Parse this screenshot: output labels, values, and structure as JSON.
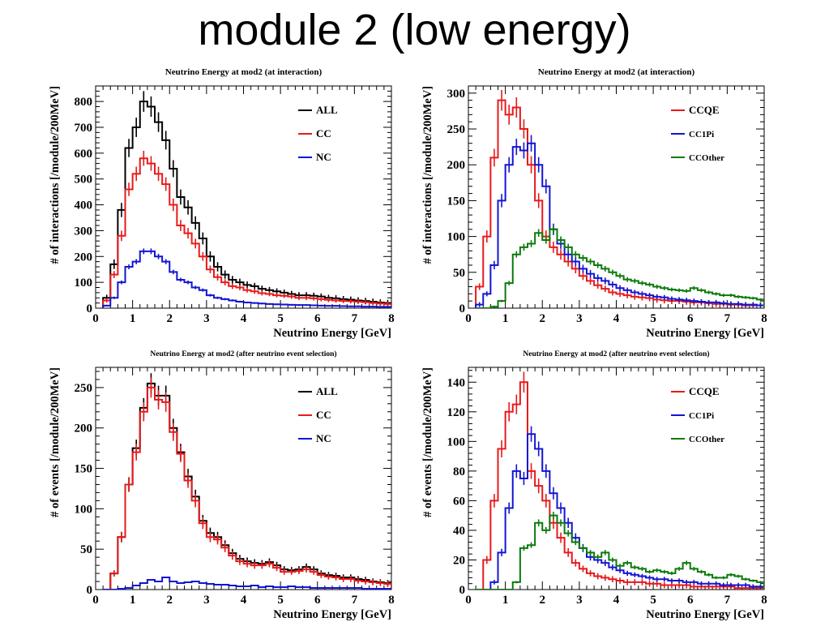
{
  "slide": {
    "title": "module 2 (low energy)"
  },
  "colors": {
    "ALL": "#000000",
    "CC": "#e8191a",
    "NC": "#1414d2",
    "CCQE": "#e8191a",
    "CC1Pi": "#1414d2",
    "CCOther": "#0a7a0a"
  },
  "chart_data": [
    {
      "type": "histogram",
      "title": "Neutrino Energy at mod2 (at interaction)",
      "xlabel": "Neutrino Energy [GeV]",
      "ylabel": "# of interactions [/module/200MeV]",
      "xlim": [
        0,
        8
      ],
      "ylim": [
        0,
        860
      ],
      "xticks": [
        0,
        1,
        2,
        3,
        4,
        5,
        6,
        7,
        8
      ],
      "yticks": [
        0,
        100,
        200,
        300,
        400,
        500,
        600,
        700,
        800
      ],
      "bin_width": 0.2,
      "x_start": 0.2,
      "legend_position": "top-right",
      "series": [
        {
          "name": "ALL",
          "color": "#000000",
          "values": [
            40,
            170,
            380,
            620,
            700,
            800,
            780,
            720,
            650,
            540,
            430,
            390,
            330,
            270,
            200,
            160,
            130,
            110,
            100,
            90,
            85,
            75,
            70,
            65,
            60,
            55,
            50,
            50,
            48,
            45,
            40,
            38,
            35,
            33,
            30,
            28,
            25,
            22,
            20
          ]
        },
        {
          "name": "CC",
          "color": "#e8191a",
          "values": [
            30,
            130,
            280,
            460,
            520,
            580,
            560,
            520,
            480,
            400,
            320,
            290,
            250,
            200,
            150,
            120,
            100,
            85,
            80,
            70,
            65,
            58,
            55,
            50,
            48,
            45,
            40,
            40,
            38,
            35,
            32,
            30,
            28,
            27,
            25,
            23,
            20,
            18,
            16
          ]
        },
        {
          "name": "NC",
          "color": "#1414d2",
          "values": [
            10,
            40,
            100,
            160,
            180,
            220,
            220,
            200,
            180,
            140,
            110,
            100,
            80,
            70,
            50,
            40,
            35,
            30,
            25,
            22,
            20,
            18,
            16,
            15,
            14,
            13,
            12,
            12,
            11,
            10,
            9,
            9,
            8,
            7,
            7,
            6,
            6,
            5,
            5
          ]
        }
      ]
    },
    {
      "type": "histogram",
      "title": "Neutrino Energy at mod2 (at interaction)",
      "xlabel": "Neutrino Energy [GeV]",
      "ylabel": "# of interactions [/module/200MeV]",
      "xlim": [
        0,
        8
      ],
      "ylim": [
        0,
        310
      ],
      "xticks": [
        0,
        1,
        2,
        3,
        4,
        5,
        6,
        7,
        8
      ],
      "yticks": [
        0,
        50,
        100,
        150,
        200,
        250,
        300
      ],
      "bin_width": 0.2,
      "x_start": 0.2,
      "legend_position": "top-right",
      "series": [
        {
          "name": "CCQE",
          "color": "#e8191a",
          "values": [
            30,
            100,
            210,
            290,
            270,
            280,
            250,
            200,
            150,
            100,
            85,
            75,
            65,
            55,
            45,
            38,
            32,
            27,
            22,
            20,
            18,
            16,
            15,
            14,
            12,
            11,
            10,
            10,
            9,
            8,
            8,
            7,
            6,
            6,
            5,
            5,
            4,
            4,
            4
          ]
        },
        {
          "name": "CC1Pi",
          "color": "#1414d2",
          "values": [
            5,
            20,
            60,
            150,
            200,
            225,
            220,
            230,
            200,
            170,
            110,
            90,
            75,
            65,
            55,
            48,
            42,
            38,
            33,
            28,
            25,
            22,
            20,
            18,
            16,
            15,
            13,
            12,
            11,
            10,
            9,
            8,
            8,
            7,
            6,
            6,
            5,
            5,
            4
          ]
        },
        {
          "name": "CCOther",
          "color": "#0a7a0a",
          "values": [
            0,
            0,
            2,
            10,
            35,
            75,
            85,
            90,
            105,
            95,
            110,
            95,
            85,
            75,
            70,
            65,
            60,
            55,
            50,
            45,
            40,
            38,
            35,
            33,
            30,
            28,
            26,
            25,
            24,
            28,
            25,
            22,
            20,
            18,
            18,
            16,
            15,
            14,
            12
          ]
        }
      ]
    },
    {
      "type": "histogram",
      "title": "Neutrino Energy at mod2 (after neutrino event selection)",
      "xlabel": "Neutrino Energy [GeV]",
      "ylabel": "# of events [/module/200MeV]",
      "xlim": [
        0,
        8
      ],
      "ylim": [
        0,
        275
      ],
      "xticks": [
        0,
        1,
        2,
        3,
        4,
        5,
        6,
        7,
        8
      ],
      "yticks": [
        0,
        50,
        100,
        150,
        200,
        250
      ],
      "bin_width": 0.2,
      "x_start": 0.2,
      "legend_position": "top-right",
      "series": [
        {
          "name": "ALL",
          "color": "#000000",
          "values": [
            0,
            20,
            65,
            130,
            175,
            225,
            255,
            240,
            240,
            200,
            170,
            140,
            115,
            85,
            70,
            65,
            55,
            45,
            38,
            35,
            33,
            32,
            34,
            30,
            25,
            24,
            25,
            28,
            25,
            20,
            18,
            17,
            15,
            15,
            13,
            12,
            10,
            9,
            8
          ]
        },
        {
          "name": "CC",
          "color": "#e8191a",
          "values": [
            0,
            20,
            65,
            130,
            170,
            220,
            250,
            235,
            232,
            195,
            168,
            135,
            110,
            82,
            65,
            62,
            52,
            42,
            35,
            32,
            30,
            30,
            32,
            27,
            22,
            22,
            23,
            25,
            22,
            18,
            16,
            15,
            13,
            13,
            11,
            10,
            9,
            8,
            7
          ]
        },
        {
          "name": "NC",
          "color": "#1414d2",
          "values": [
            0,
            0,
            1,
            2,
            5,
            8,
            12,
            10,
            15,
            10,
            8,
            9,
            10,
            8,
            7,
            6,
            6,
            5,
            4,
            4,
            5,
            3,
            4,
            3,
            3,
            4,
            3,
            3,
            2,
            2,
            2,
            2,
            2,
            2,
            2,
            1,
            1,
            1,
            1
          ]
        }
      ]
    },
    {
      "type": "histogram",
      "title": "Neutrino Energy at mod2 (after neutrino event selection)",
      "xlabel": "Neutrino Energy [GeV]",
      "ylabel": "# of events [/module/200MeV]",
      "xlim": [
        0,
        8
      ],
      "ylim": [
        0,
        150
      ],
      "xticks": [
        0,
        1,
        2,
        3,
        4,
        5,
        6,
        7,
        8
      ],
      "yticks": [
        0,
        20,
        40,
        60,
        80,
        100,
        120,
        140
      ],
      "bin_width": 0.2,
      "x_start": 0.2,
      "legend_position": "top-right",
      "series": [
        {
          "name": "CCQE",
          "color": "#e8191a",
          "values": [
            0,
            20,
            60,
            95,
            120,
            125,
            140,
            80,
            70,
            60,
            45,
            35,
            25,
            18,
            14,
            11,
            9,
            8,
            7,
            6,
            5,
            5,
            5,
            4,
            4,
            3,
            3,
            3,
            3,
            2,
            2,
            2,
            2,
            2,
            2,
            1,
            1,
            1,
            1
          ]
        },
        {
          "name": "CC1Pi",
          "color": "#1414d2",
          "values": [
            0,
            0,
            5,
            25,
            55,
            80,
            75,
            105,
            95,
            80,
            65,
            55,
            45,
            35,
            28,
            22,
            20,
            18,
            15,
            13,
            11,
            10,
            9,
            8,
            7,
            7,
            6,
            6,
            5,
            5,
            4,
            4,
            4,
            3,
            3,
            3,
            3,
            2,
            2
          ]
        },
        {
          "name": "CCOther",
          "color": "#0a7a0a",
          "values": [
            0,
            0,
            0,
            0,
            0,
            5,
            28,
            30,
            45,
            40,
            50,
            45,
            38,
            32,
            28,
            25,
            22,
            25,
            20,
            16,
            18,
            15,
            14,
            12,
            13,
            12,
            11,
            14,
            18,
            14,
            12,
            10,
            8,
            8,
            10,
            9,
            7,
            6,
            5
          ]
        }
      ]
    }
  ]
}
